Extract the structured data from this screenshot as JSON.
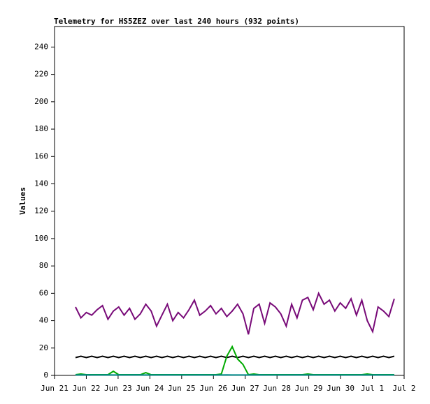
{
  "chart_data": {
    "type": "line",
    "title": "Telemetry for HS5ZEZ over last 240 hours (932 points)",
    "y_label": "Values",
    "x": [
      0.66,
      0.83,
      1.0,
      1.17,
      1.34,
      1.51,
      1.68,
      1.85,
      2.02,
      2.19,
      2.36,
      2.53,
      2.7,
      2.87,
      3.04,
      3.21,
      3.38,
      3.55,
      3.72,
      3.89,
      4.06,
      4.23,
      4.4,
      4.57,
      4.74,
      4.91,
      5.08,
      5.25,
      5.42,
      5.59,
      5.76,
      5.93,
      6.1,
      6.27,
      6.44,
      6.61,
      6.78,
      6.95,
      7.12,
      7.29,
      7.46,
      7.63,
      7.8,
      7.97,
      8.14,
      8.31,
      8.48,
      8.65,
      8.82,
      8.99,
      9.16,
      9.33,
      9.5,
      9.67,
      9.84,
      10.01,
      10.18,
      10.35,
      10.52,
      10.69
    ],
    "xlim": [
      0,
      11
    ],
    "xticks": [
      {
        "value": 0,
        "label": "Jun 21"
      },
      {
        "value": 1,
        "label": "Jun 22"
      },
      {
        "value": 2,
        "label": "Jun 23"
      },
      {
        "value": 3,
        "label": "Jun 24"
      },
      {
        "value": 4,
        "label": "Jun 25"
      },
      {
        "value": 5,
        "label": "Jun 26"
      },
      {
        "value": 6,
        "label": "Jun 27"
      },
      {
        "value": 7,
        "label": "Jun 28"
      },
      {
        "value": 8,
        "label": "Jun 29"
      },
      {
        "value": 9,
        "label": "Jun 30"
      },
      {
        "value": 10,
        "label": "Jul 1"
      },
      {
        "value": 11,
        "label": "Jul 2"
      }
    ],
    "ylim": [
      0,
      255
    ],
    "yticks": [
      0,
      20,
      40,
      60,
      80,
      100,
      120,
      140,
      160,
      180,
      200,
      220,
      240
    ],
    "series": [
      {
        "color": "#780a78",
        "values": [
          50,
          42,
          46,
          44,
          48,
          51,
          41,
          47,
          50,
          44,
          49,
          41,
          45,
          52,
          47,
          36,
          44,
          52,
          40,
          46,
          42,
          48,
          55,
          44,
          47,
          51,
          45,
          49,
          43,
          47,
          52,
          45,
          30,
          49,
          52,
          38,
          53,
          50,
          45,
          36,
          52,
          42,
          55,
          57,
          48,
          60,
          52,
          55,
          47,
          53,
          49,
          56,
          44,
          55,
          40,
          32,
          50,
          47,
          43,
          56
        ]
      },
      {
        "color": "#000000",
        "values": [
          13,
          14,
          13,
          14,
          13,
          14,
          13,
          14,
          13,
          14,
          13,
          14,
          13,
          14,
          13,
          14,
          13,
          14,
          13,
          14,
          13,
          14,
          13,
          14,
          13,
          14,
          13,
          14,
          13,
          14,
          13,
          14,
          13,
          14,
          13,
          14,
          13,
          14,
          13,
          14,
          13,
          14,
          13,
          14,
          13,
          14,
          13,
          14,
          13,
          14,
          13,
          14,
          13,
          14,
          13,
          14,
          13,
          14,
          13,
          14
        ]
      },
      {
        "color": "#00aa00",
        "values": [
          0.5,
          1,
          0.5,
          0.5,
          0.5,
          0.5,
          0.5,
          3,
          0.5,
          0.5,
          0.5,
          0.5,
          0.5,
          2,
          0.5,
          0.5,
          0.5,
          0.5,
          0.5,
          0.5,
          0.5,
          0.5,
          0.5,
          0.5,
          0.5,
          0.5,
          0.5,
          1,
          14,
          21,
          12,
          8,
          0.5,
          1,
          0.5,
          0.5,
          0.5,
          0.5,
          0.5,
          0.5,
          0.5,
          0.5,
          0.5,
          1,
          0.5,
          0.5,
          0.5,
          0.5,
          0.5,
          0.5,
          0.5,
          0.5,
          0.5,
          0.5,
          1,
          0.5,
          0.5,
          0.5,
          0.5,
          0.5
        ]
      },
      {
        "color": "#008b8b",
        "values": [
          0.3,
          0.3,
          0.4,
          0.3,
          0.3,
          0.3,
          0.4,
          0.3,
          0.3,
          0.3,
          0.3,
          0.4,
          0.3,
          0.3,
          0.3,
          0.3,
          0.3,
          0.4,
          0.3,
          0.3,
          0.3,
          0.3,
          0.3,
          0.4,
          0.3,
          0.3,
          0.3,
          0.3,
          0.4,
          0.3,
          0.3,
          0.3,
          0.3,
          0.3,
          0.4,
          0.3,
          0.3,
          0.3,
          0.3,
          0.3,
          0.3,
          0.4,
          0.3,
          0.3,
          0.3,
          0.3,
          0.3,
          0.3,
          0.4,
          0.3,
          0.3,
          0.3,
          0.3,
          0.3,
          0.3,
          0.3,
          0.4,
          0.3,
          0.3,
          0.3
        ]
      }
    ]
  }
}
